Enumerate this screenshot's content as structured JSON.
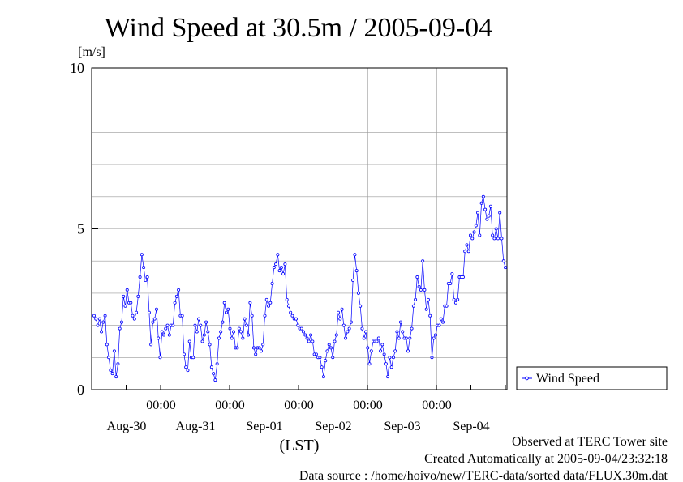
{
  "chart_data": {
    "type": "line",
    "title": "Wind Speed at 30.5m / 2005-09-04",
    "ylabel": "[m/s]",
    "xlabel": "(LST)",
    "ylim": [
      0,
      10
    ],
    "y_ticks": [
      0,
      5,
      10
    ],
    "x_time_labels": [
      "00:00",
      "00:00",
      "00:00",
      "00:00",
      "00:00"
    ],
    "x_date_labels": [
      "Aug-30",
      "Aug-31",
      "Sep-01",
      "Sep-02",
      "Sep-03",
      "Sep-04"
    ],
    "grid": true,
    "legend_position": "right",
    "series": [
      {
        "name": "Wind Speed",
        "color": "#0000ff",
        "values": [
          2.3,
          2.2,
          2.0,
          2.2,
          1.8,
          2.1,
          2.3,
          1.4,
          1.0,
          0.6,
          0.5,
          1.2,
          0.4,
          0.8,
          1.9,
          2.1,
          2.9,
          2.6,
          3.1,
          2.7,
          2.7,
          2.3,
          2.2,
          2.4,
          2.9,
          3.5,
          4.2,
          3.8,
          3.4,
          3.5,
          2.4,
          1.4,
          2.1,
          2.2,
          2.5,
          1.6,
          1.0,
          1.8,
          1.7,
          1.9,
          2.0,
          1.7,
          2.0,
          2.0,
          2.7,
          2.9,
          3.1,
          2.3,
          2.3,
          1.1,
          0.7,
          0.6,
          1.5,
          1.0,
          1.0,
          2.0,
          1.8,
          2.2,
          2.0,
          1.5,
          1.7,
          2.1,
          1.8,
          1.4,
          0.7,
          0.5,
          0.3,
          0.8,
          1.6,
          1.8,
          2.1,
          2.7,
          2.4,
          2.5,
          1.9,
          1.6,
          1.8,
          1.3,
          1.3,
          1.9,
          1.8,
          1.6,
          2.2,
          2.0,
          1.7,
          2.7,
          2.3,
          1.3,
          1.1,
          1.3,
          1.3,
          1.2,
          1.4,
          2.3,
          2.8,
          2.6,
          2.7,
          3.3,
          3.8,
          3.9,
          4.2,
          3.7,
          3.8,
          3.6,
          3.9,
          2.8,
          2.6,
          2.4,
          2.3,
          2.2,
          2.2,
          2.0,
          1.9,
          1.9,
          1.8,
          1.7,
          1.6,
          1.5,
          1.7,
          1.5,
          1.1,
          1.1,
          1.0,
          1.0,
          0.7,
          0.4,
          0.9,
          1.2,
          1.4,
          1.3,
          1.0,
          1.5,
          1.7,
          2.4,
          2.2,
          2.5,
          2.0,
          1.6,
          1.8,
          1.9,
          2.1,
          3.4,
          4.2,
          3.7,
          3.0,
          2.6,
          1.9,
          1.6,
          1.8,
          1.3,
          0.8,
          1.2,
          1.5,
          1.5,
          1.5,
          1.6,
          1.2,
          1.4,
          1.1,
          0.8,
          0.4,
          1.0,
          0.7,
          1.0,
          1.2,
          1.8,
          1.6,
          2.1,
          1.8,
          1.6,
          1.6,
          1.2,
          1.6,
          1.9,
          2.6,
          2.8,
          3.5,
          3.2,
          3.1,
          4.0,
          3.1,
          2.5,
          2.8,
          2.3,
          1.0,
          1.6,
          1.7,
          2.0,
          2.0,
          2.2,
          2.1,
          2.6,
          2.6,
          3.3,
          3.3,
          3.6,
          2.8,
          2.7,
          2.8,
          3.5,
          3.5,
          3.5,
          4.3,
          4.5,
          4.3,
          4.8,
          4.7,
          4.9,
          5.1,
          5.5,
          4.8,
          5.8,
          6.0,
          5.6,
          5.3,
          5.4,
          5.7,
          4.8,
          4.7,
          5.0,
          4.7,
          5.5,
          4.7,
          4.0,
          3.8
        ]
      }
    ],
    "annotations": [
      "Observed at TERC Tower site",
      "Created Automatically at 2005-09-04/23:32:18",
      "Data source : /home/hoivo/new/TERC-data/sorted data/FLUX.30m.dat"
    ]
  }
}
